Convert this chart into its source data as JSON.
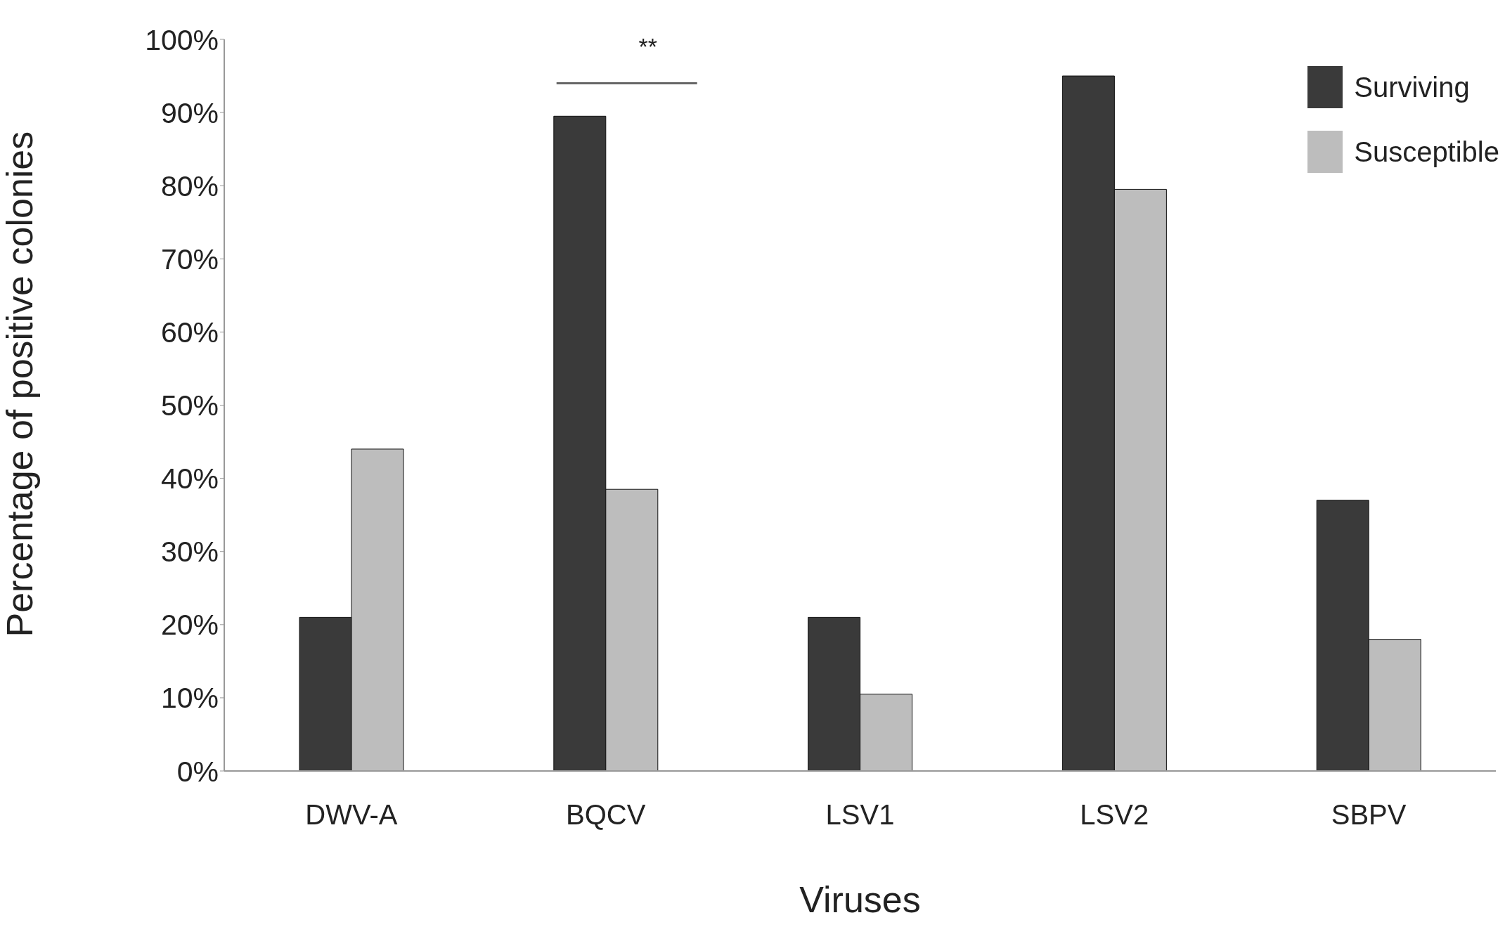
{
  "chart_data": {
    "type": "bar",
    "xlabel": "Viruses",
    "ylabel": "Percentage of positive colonies",
    "categories": [
      "DWV-A",
      "BQCV",
      "LSV1",
      "LSV2",
      "SBPV"
    ],
    "series": [
      {
        "name": "Surviving",
        "color": "#3a3a3a",
        "values": [
          21,
          89.5,
          21,
          95,
          37
        ]
      },
      {
        "name": "Susceptible",
        "color": "#bdbdbd",
        "values": [
          44,
          38.5,
          10.5,
          79.5,
          18
        ]
      }
    ],
    "ylim": [
      0,
      100
    ],
    "yticks": [
      {
        "value": 0,
        "label": "0%"
      },
      {
        "value": 10,
        "label": "10%"
      },
      {
        "value": 20,
        "label": "20%"
      },
      {
        "value": 30,
        "label": "30%"
      },
      {
        "value": 40,
        "label": "40%"
      },
      {
        "value": 50,
        "label": "50%"
      },
      {
        "value": 60,
        "label": "60%"
      },
      {
        "value": 70,
        "label": "70%"
      },
      {
        "value": 80,
        "label": "80%"
      },
      {
        "value": 90,
        "label": "90%"
      },
      {
        "value": 100,
        "label": "100%"
      }
    ],
    "annotations": [
      "**"
    ],
    "grid": false,
    "legend": "top right"
  }
}
